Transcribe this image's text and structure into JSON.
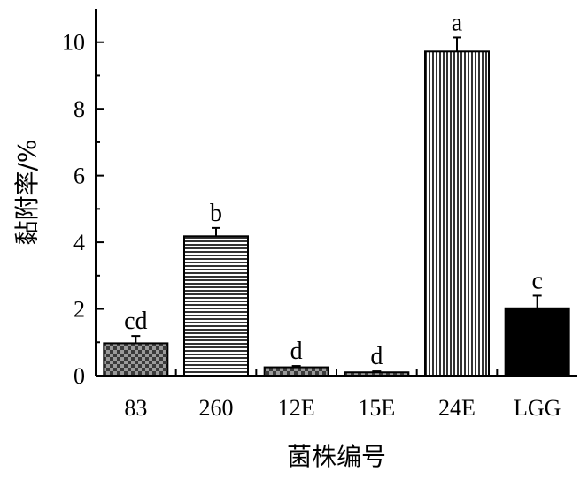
{
  "chart_data": {
    "type": "bar",
    "categories": [
      "83",
      "260",
      "12E",
      "15E",
      "24E",
      "LGG"
    ],
    "values": [
      0.97,
      4.18,
      0.25,
      0.1,
      9.72,
      2.02
    ],
    "errors": [
      0.22,
      0.25,
      0.04,
      0.03,
      0.42,
      0.38
    ],
    "significance": [
      "cd",
      "b",
      "d",
      "d",
      "a",
      "c"
    ],
    "patterns": [
      "checker",
      "hstripe",
      "checker",
      "checker",
      "vstripe",
      "solid"
    ],
    "xlabel": "菌株编号",
    "ylabel": "黏附率/%",
    "ylim": [
      0,
      11
    ],
    "yticks": [
      0,
      2,
      4,
      6,
      8,
      10
    ],
    "grid": false,
    "bar_color": "#000000"
  }
}
